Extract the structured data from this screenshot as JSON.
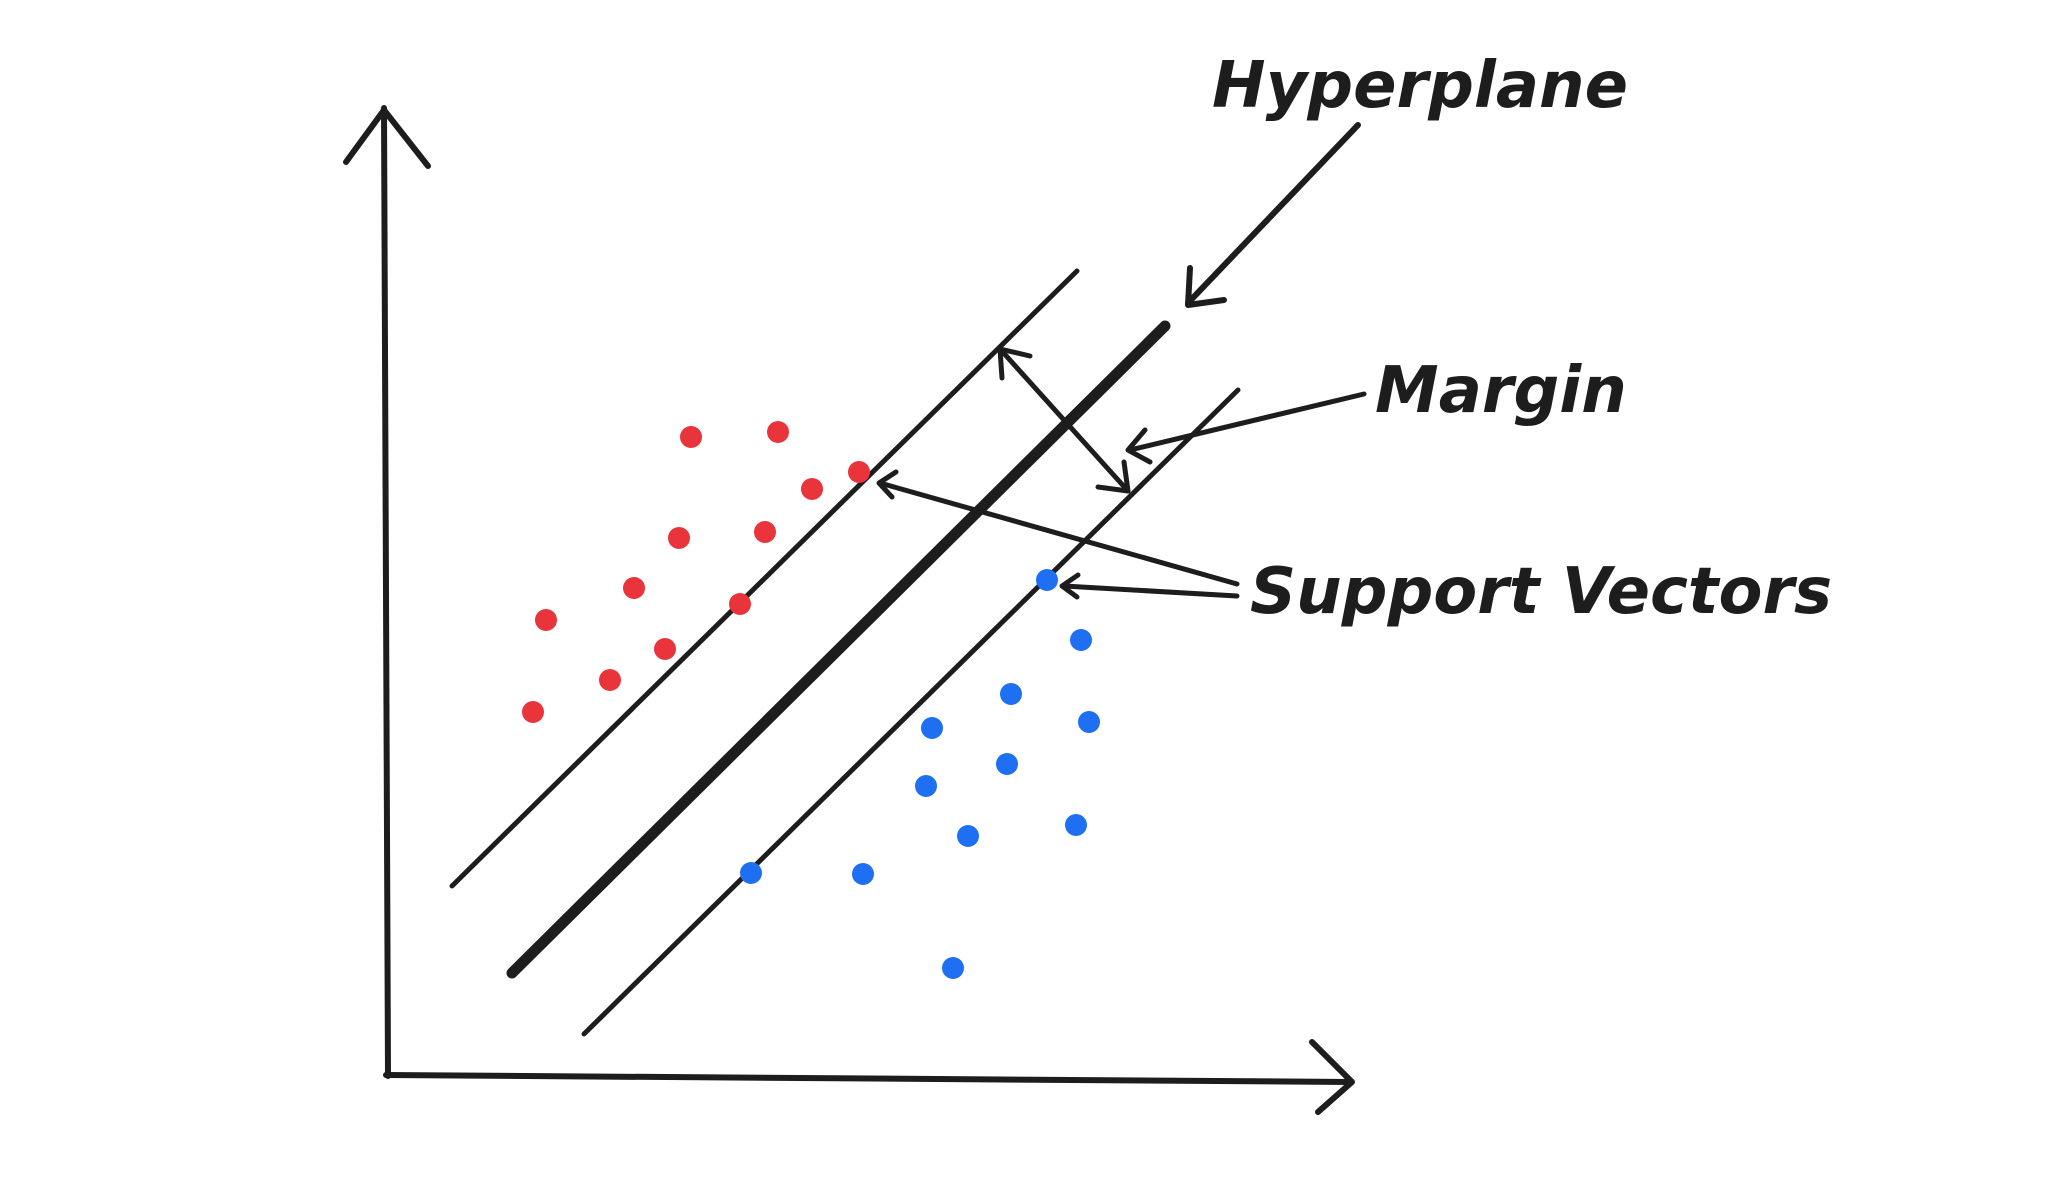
{
  "labels": {
    "hyperplane": "Hyperplane",
    "margin": "Margin",
    "support_vectors": "Support Vectors"
  },
  "colors": {
    "ink": "#1d1d1d",
    "class_a": "#e8343a",
    "class_b": "#1f6ff2"
  },
  "icons": {
    "axes": "axis-arrows",
    "annotation": "pointer-arrow"
  }
}
